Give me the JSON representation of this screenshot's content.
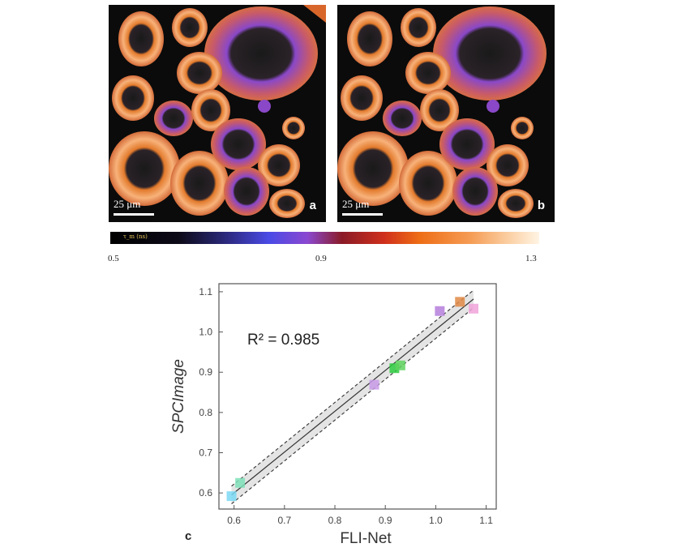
{
  "panel_a": {
    "scale_label": "25 μm",
    "letter": "a"
  },
  "panel_b": {
    "scale_label": "25 μm",
    "letter": "b"
  },
  "colorbar": {
    "symbol": "τ_m (ns)",
    "ticks": [
      "0.5",
      "0.9",
      "1.3"
    ]
  },
  "panel_c_letter": "c",
  "chart_data": {
    "type": "scatter",
    "xlabel": "FLI-Net",
    "ylabel": "SPCImage",
    "annotation": "R² = 0.985",
    "xlim": [
      0.57,
      1.12
    ],
    "ylim": [
      0.56,
      1.12
    ],
    "xticks": [
      "0.6",
      "0.7",
      "0.8",
      "0.9",
      "1.0",
      "1.1"
    ],
    "yticks": [
      "0.6",
      "0.7",
      "0.8",
      "0.9",
      "1.0",
      "1.1"
    ],
    "grid": false,
    "points": [
      {
        "x": 0.595,
        "y": 0.592,
        "color": "#7ad8f4"
      },
      {
        "x": 0.612,
        "y": 0.625,
        "color": "#7fe0b8"
      },
      {
        "x": 0.878,
        "y": 0.869,
        "color": "#c89ae8"
      },
      {
        "x": 0.918,
        "y": 0.91,
        "color": "#2ecc40"
      },
      {
        "x": 0.93,
        "y": 0.917,
        "color": "#5fd35f"
      },
      {
        "x": 1.008,
        "y": 1.052,
        "color": "#b57edc"
      },
      {
        "x": 1.048,
        "y": 1.075,
        "color": "#e08a45"
      },
      {
        "x": 1.075,
        "y": 1.058,
        "color": "#f0a3d8"
      }
    ],
    "fit_line": {
      "x": [
        0.595,
        1.075
      ],
      "y": [
        0.595,
        1.082
      ]
    },
    "confidence_band_halfwidth": 0.022
  }
}
